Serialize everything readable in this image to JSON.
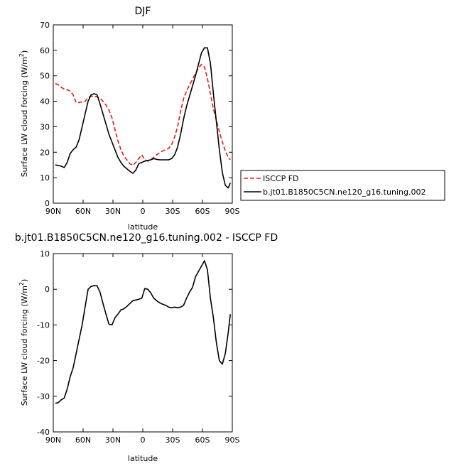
{
  "chart_data": [
    {
      "type": "line",
      "title": "DJF",
      "xlabel": "latitude",
      "ylabel": "Surface LW cloud forcing (W/m²)",
      "ylabel_main": "Surface LW cloud forcing (W/m",
      "ylabel_sup": "2",
      "ylabel_close": ")",
      "xlim": [
        -90,
        90
      ],
      "ylim": [
        0,
        70
      ],
      "x_direction": "90N to 90S",
      "x_tick_values": [
        -90,
        -60,
        -30,
        0,
        30,
        60,
        90
      ],
      "x_tick_labels": [
        "90N",
        "60N",
        "30N",
        "0",
        "30S",
        "60S",
        "90S"
      ],
      "y_ticks": [
        0,
        10,
        20,
        30,
        40,
        50,
        60,
        70
      ],
      "legend_position": "right, outside plot",
      "series": [
        {
          "name": "ISCCP FD",
          "color": "#e41a1c",
          "dash": "dashed",
          "x": [
            -88,
            -85,
            -82,
            -79,
            -76,
            -73,
            -70,
            -67,
            -64,
            -61,
            -58,
            -55,
            -52,
            -49,
            -46,
            -43,
            -40,
            -37,
            -34,
            -31,
            -28,
            -25,
            -22,
            -19,
            -16,
            -13,
            -10,
            -7,
            -4,
            -1,
            2,
            5,
            8,
            11,
            14,
            17,
            20,
            23,
            26,
            29,
            32,
            35,
            38,
            41,
            44,
            47,
            50,
            53,
            56,
            59,
            62,
            65,
            68,
            71,
            74,
            77,
            80,
            83,
            86,
            88
          ],
          "y": [
            47,
            46.5,
            45.5,
            44.8,
            44.5,
            44,
            42.5,
            39.5,
            39.5,
            39.8,
            40,
            41.5,
            42,
            42,
            41.8,
            41.2,
            40,
            38.5,
            36.5,
            33.5,
            29,
            24.5,
            21,
            18.5,
            17,
            15.5,
            14.8,
            16,
            17.5,
            19,
            17,
            16.5,
            17,
            18,
            19,
            19.8,
            20.5,
            21,
            21.5,
            23,
            26,
            30,
            36,
            41,
            44,
            46.5,
            48.5,
            51,
            53,
            54.5,
            53.5,
            49,
            43,
            37,
            32.5,
            28,
            24,
            20.5,
            18,
            17
          ]
        },
        {
          "name": "b.jt01.B1850C5CN.ne120_g16.tuning.002",
          "color": "#000000",
          "dash": "solid",
          "x": [
            -88,
            -85,
            -82,
            -79,
            -76,
            -73,
            -70,
            -67,
            -64,
            -61,
            -58,
            -55,
            -52,
            -49,
            -46,
            -43,
            -40,
            -37,
            -34,
            -31,
            -28,
            -25,
            -22,
            -19,
            -16,
            -13,
            -10,
            -7,
            -4,
            -1,
            2,
            5,
            8,
            11,
            14,
            17,
            20,
            23,
            26,
            29,
            32,
            35,
            38,
            41,
            44,
            47,
            50,
            53,
            56,
            59,
            62,
            65,
            68,
            71,
            74,
            77,
            80,
            83,
            86,
            88
          ],
          "y": [
            15,
            14.8,
            14.5,
            14,
            16,
            19.5,
            21,
            22,
            25,
            30,
            35,
            40,
            42.5,
            43,
            42.5,
            39,
            35,
            31,
            27,
            24,
            21,
            18,
            16,
            14.5,
            13.5,
            12.5,
            11.7,
            13,
            15.5,
            16,
            16.5,
            16.8,
            17,
            17.5,
            17.2,
            17,
            17,
            17,
            17,
            17.5,
            19,
            22,
            27,
            33,
            38,
            42,
            46,
            50,
            54.5,
            59,
            61,
            61,
            55,
            43,
            32,
            21,
            12,
            7,
            6,
            8
          ]
        }
      ]
    },
    {
      "type": "line",
      "title": "b.jt01.B1850C5CN.ne120_g16.tuning.002 - ISCCP FD",
      "xlabel": "latitude",
      "ylabel": "Surface LW cloud forcing (W/m²)",
      "ylabel_main": "Surface LW cloud forcing (W/m",
      "ylabel_sup": "2",
      "ylabel_close": ")",
      "xlim": [
        -90,
        90
      ],
      "ylim": [
        -40,
        10
      ],
      "x_direction": "90N to 90S",
      "x_tick_values": [
        -90,
        -60,
        -30,
        0,
        30,
        60,
        90
      ],
      "x_tick_labels": [
        "90N",
        "60N",
        "30N",
        "0",
        "30S",
        "60S",
        "90S"
      ],
      "y_ticks": [
        -40,
        -30,
        -20,
        -10,
        0,
        10
      ],
      "series": [
        {
          "color": "#000000",
          "dash": "solid",
          "x": [
            -88,
            -85,
            -82,
            -79,
            -76,
            -73,
            -70,
            -67,
            -64,
            -61,
            -58,
            -55,
            -52,
            -49,
            -46,
            -43,
            -40,
            -37,
            -34,
            -31,
            -28,
            -25,
            -22,
            -19,
            -16,
            -13,
            -10,
            -7,
            -4,
            -1,
            2,
            5,
            8,
            11,
            14,
            17,
            20,
            23,
            26,
            29,
            32,
            35,
            38,
            41,
            44,
            47,
            50,
            53,
            56,
            59,
            62,
            65,
            68,
            71,
            74,
            77,
            80,
            83,
            86,
            88
          ],
          "y": [
            -32,
            -31.8,
            -31,
            -30.5,
            -28,
            -24.5,
            -22,
            -18,
            -14,
            -10,
            -5,
            0,
            0.8,
            1,
            1,
            -0.8,
            -4,
            -7,
            -9.8,
            -10,
            -8,
            -7,
            -5.8,
            -5.5,
            -4.8,
            -4,
            -3.2,
            -3,
            -2.8,
            -2.5,
            0.2,
            0,
            -1,
            -2.5,
            -3.2,
            -3.8,
            -4.2,
            -4.5,
            -5,
            -5.2,
            -5,
            -5.2,
            -5,
            -4.5,
            -2.5,
            -0.8,
            0.5,
            3.5,
            5,
            6.5,
            8,
            5.5,
            -2.5,
            -8,
            -15,
            -20,
            -21,
            -18,
            -12,
            -7
          ]
        }
      ]
    }
  ]
}
